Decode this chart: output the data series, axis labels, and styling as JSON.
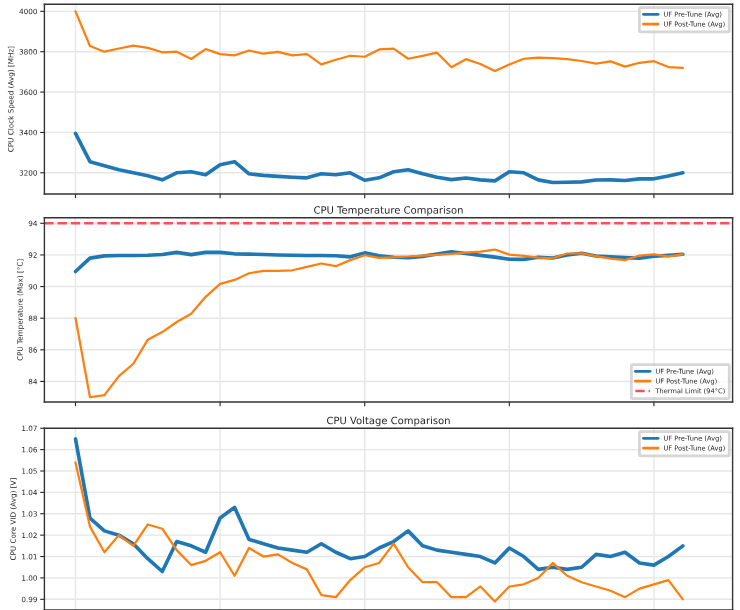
{
  "chart_data": [
    {
      "type": "line",
      "ylabel": "CPU Clock Speed (Avg) [MHz]",
      "categories": [
        null,
        null,
        null,
        null,
        null,
        null,
        null,
        null,
        null,
        null,
        null,
        null,
        null,
        null,
        null,
        null,
        null,
        null,
        null,
        null,
        null,
        null,
        null,
        null,
        null,
        null,
        null,
        null,
        null,
        null,
        null,
        null,
        null,
        null,
        null,
        null,
        null,
        null,
        null,
        null,
        null,
        null,
        null
      ],
      "ylim": [
        3095,
        4035
      ],
      "yticks": [
        3200,
        3400,
        3600,
        3800,
        4000
      ],
      "grid": true,
      "legend": "top right",
      "series": [
        {
          "name": "UF Pre-Tune (Avg)",
          "color": "#1f77b4",
          "values": [
            3395,
            3255,
            3235,
            3215,
            3200,
            3185,
            3165,
            3200,
            3205,
            3190,
            3240,
            3255,
            3195,
            3187,
            3182,
            3178,
            3175,
            3195,
            3190,
            3200,
            3163,
            3175,
            3205,
            3215,
            3195,
            3178,
            3166,
            3174,
            3165,
            3160,
            3205,
            3200,
            3165,
            3152,
            3153,
            3155,
            3164,
            3165,
            3162,
            3170,
            3170,
            3184,
            3200
          ]
        },
        {
          "name": "UF Post-Tune (Avg)",
          "color": "#ff7f0e",
          "values": [
            4000,
            3828,
            3800,
            3816,
            3830,
            3819,
            3797,
            3800,
            3764,
            3813,
            3788,
            3782,
            3806,
            3790,
            3799,
            3782,
            3788,
            3737,
            3760,
            3780,
            3775,
            3811,
            3815,
            3765,
            3779,
            3795,
            3723,
            3763,
            3739,
            3704,
            3737,
            3765,
            3771,
            3768,
            3763,
            3754,
            3741,
            3752,
            3726,
            3745,
            3753,
            3724,
            3720
          ]
        }
      ]
    },
    {
      "type": "line",
      "title": "CPU Temperature Comparison",
      "ylabel": "CPU Temperature (Max) [°C]",
      "categories": [
        null,
        null,
        null,
        null,
        null,
        null,
        null,
        null,
        null,
        null,
        null,
        null,
        null,
        null,
        null,
        null,
        null,
        null,
        null,
        null,
        null,
        null,
        null,
        null,
        null,
        null,
        null,
        null,
        null,
        null,
        null,
        null,
        null,
        null,
        null,
        null,
        null,
        null,
        null,
        null,
        null,
        null,
        null
      ],
      "ylim": [
        82.7,
        94.35
      ],
      "yticks": [
        84,
        86,
        88,
        90,
        92,
        94
      ],
      "grid": true,
      "legend": "bottom right",
      "ref_lines": [
        {
          "axis": "y",
          "value": 94,
          "label": "Thermal Limit (94°C)",
          "color": "#ff5050",
          "line_style": "dashed"
        }
      ],
      "series": [
        {
          "name": "UF Pre-Tune (Avg)",
          "color": "#1f77b4",
          "values": [
            90.95,
            91.8,
            91.94,
            91.96,
            91.96,
            91.98,
            92.03,
            92.16,
            92.02,
            92.16,
            92.16,
            92.07,
            92.05,
            92.03,
            92.0,
            91.98,
            91.96,
            91.96,
            91.95,
            91.88,
            92.13,
            91.94,
            91.85,
            91.82,
            91.91,
            92.06,
            92.2,
            92.09,
            91.97,
            91.86,
            91.73,
            91.72,
            91.85,
            91.81,
            92.0,
            92.11,
            91.93,
            91.88,
            91.83,
            91.79,
            91.92,
            91.97,
            92.04
          ]
        },
        {
          "name": "UF Post-Tune (Avg)",
          "color": "#ff7f0e",
          "values": [
            88.01,
            83.0,
            83.13,
            84.34,
            85.12,
            86.64,
            87.12,
            87.76,
            88.28,
            89.35,
            90.17,
            90.42,
            90.84,
            90.99,
            90.99,
            91.03,
            91.24,
            91.46,
            91.29,
            91.67,
            91.98,
            91.81,
            91.85,
            91.9,
            91.95,
            92.0,
            92.07,
            92.15,
            92.21,
            92.34,
            92.02,
            91.94,
            91.83,
            91.79,
            92.09,
            92.1,
            91.92,
            91.77,
            91.67,
            91.96,
            92.03,
            91.91,
            92.04
          ]
        }
      ]
    },
    {
      "type": "line",
      "title": "CPU Voltage Comparison",
      "ylabel": "CPU Core VID (Avg) [V]",
      "categories": [
        null,
        null,
        null,
        null,
        null,
        null,
        null,
        null,
        null,
        null,
        null,
        null,
        null,
        null,
        null,
        null,
        null,
        null,
        null,
        null,
        null,
        null,
        null,
        null,
        null,
        null,
        null,
        null,
        null,
        null,
        null,
        null,
        null,
        null,
        null,
        null,
        null,
        null,
        null,
        null,
        null,
        null,
        null
      ],
      "ylim": [
        0.985,
        1.07
      ],
      "yticks": [
        0.99,
        {
          "value": 1.0,
          "label": "1.00"
        },
        1.01,
        1.02,
        1.03,
        1.04,
        1.05,
        1.06,
        1.07
      ],
      "grid": true,
      "legend": "top right",
      "series": [
        {
          "name": "UF Pre-Tune (Avg)",
          "color": "#1f77b4",
          "values": [
            1.065,
            1.028,
            1.022,
            1.02,
            1.016,
            1.009,
            1.003,
            1.017,
            1.015,
            1.012,
            1.028,
            1.033,
            1.018,
            1.016,
            1.014,
            1.013,
            1.012,
            1.016,
            1.012,
            1.009,
            1.01,
            1.014,
            1.017,
            1.022,
            1.015,
            1.013,
            1.012,
            1.011,
            1.01,
            1.007,
            1.014,
            1.01,
            1.004,
            1.005,
            1.004,
            1.005,
            1.011,
            1.01,
            1.012,
            1.007,
            1.006,
            1.01,
            1.015
          ]
        },
        {
          "name": "UF Post-Tune (Avg)",
          "color": "#ff7f0e",
          "values": [
            1.054,
            1.024,
            1.012,
            1.02,
            1.015,
            1.025,
            1.023,
            1.013,
            1.006,
            1.008,
            1.012,
            1.001,
            1.014,
            1.01,
            1.011,
            1.007,
            1.004,
            0.992,
            0.991,
            0.999,
            1.005,
            1.007,
            1.016,
            1.005,
            0.998,
            0.998,
            0.991,
            0.991,
            0.996,
            0.989,
            0.996,
            0.997,
            1.0,
            1.007,
            1.001,
            0.998,
            0.996,
            0.994,
            0.991,
            0.995,
            0.997,
            0.999,
            0.99
          ]
        }
      ]
    }
  ]
}
